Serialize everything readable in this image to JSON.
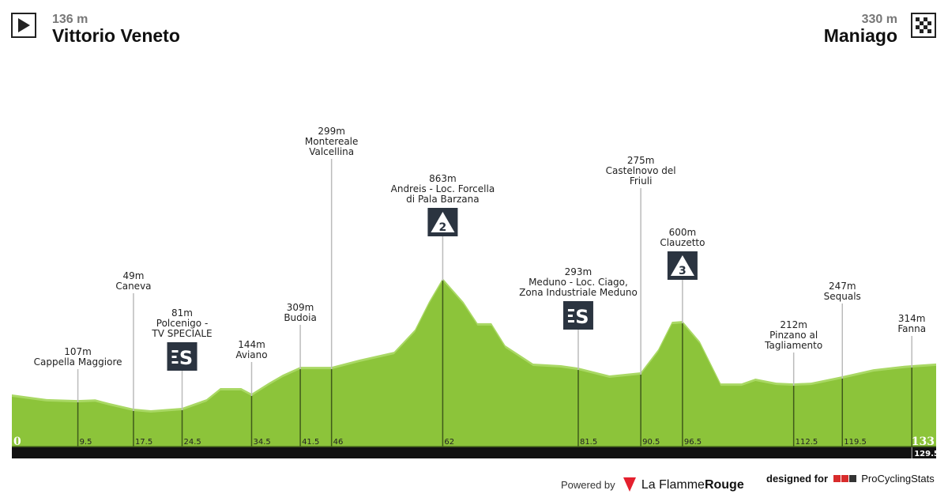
{
  "start": {
    "altitude": "136 m",
    "city": "Vittorio Veneto",
    "icon": "play-icon"
  },
  "finish": {
    "altitude": "330 m",
    "city": "Maniago",
    "icon": "checkered-flag-icon"
  },
  "colors": {
    "profile": "#8cc43a",
    "profile_light": "#a9d864",
    "axis_bar": "#111111",
    "marker_line": "#3f5a1a",
    "badge": "#2b3440"
  },
  "chart_data": {
    "type": "area",
    "xlabel": "",
    "ylabel": "",
    "xlim": [
      0,
      133
    ],
    "profile": [
      [
        0,
        136
      ],
      [
        5,
        107
      ],
      [
        9.5,
        101
      ],
      [
        12,
        105
      ],
      [
        14,
        82
      ],
      [
        17.5,
        47
      ],
      [
        20,
        37
      ],
      [
        24.5,
        52
      ],
      [
        28,
        106
      ],
      [
        30,
        176
      ],
      [
        33,
        176
      ],
      [
        34.5,
        141
      ],
      [
        37,
        210
      ],
      [
        39,
        260
      ],
      [
        41.5,
        309
      ],
      [
        46,
        309
      ],
      [
        50,
        354
      ],
      [
        55,
        403
      ],
      [
        58,
        542
      ],
      [
        60,
        715
      ],
      [
        62,
        863
      ],
      [
        65,
        715
      ],
      [
        67,
        582
      ],
      [
        69,
        582
      ],
      [
        71,
        443
      ],
      [
        75,
        329
      ],
      [
        79,
        319
      ],
      [
        81.5,
        304
      ],
      [
        86,
        255
      ],
      [
        90.5,
        275
      ],
      [
        93,
        418
      ],
      [
        95,
        591
      ],
      [
        96.5,
        596
      ],
      [
        99,
        468
      ],
      [
        102,
        205
      ],
      [
        105,
        205
      ],
      [
        107,
        235
      ],
      [
        110,
        210
      ],
      [
        112.5,
        205
      ],
      [
        115,
        210
      ],
      [
        119.5,
        250
      ],
      [
        124,
        294
      ],
      [
        128,
        314
      ],
      [
        129.5,
        319
      ],
      [
        133,
        330
      ]
    ],
    "start_km": "0",
    "finish_km": "133",
    "remaining_km": "129.5",
    "markers": [
      {
        "km": "9.5",
        "elev": "107m",
        "name": [
          "Cappella Maggiore"
        ],
        "badge": ""
      },
      {
        "km": "17.5",
        "elev": "49m",
        "name": [
          "Caneva"
        ],
        "badge": ""
      },
      {
        "km": "24.5",
        "elev": "81m",
        "name": [
          "Polcenigo -",
          "TV SPECIALE"
        ],
        "badge": "S"
      },
      {
        "km": "34.5",
        "elev": "144m",
        "name": [
          "Aviano"
        ],
        "badge": ""
      },
      {
        "km": "41.5",
        "elev": "309m",
        "name": [
          "Budoia"
        ],
        "badge": ""
      },
      {
        "km": "46",
        "elev": "299m",
        "name": [
          "Montereale",
          "Valcellina"
        ],
        "badge": ""
      },
      {
        "km": "62",
        "elev": "863m",
        "name": [
          "Andreis - Loc. Forcella",
          "di Pala Barzana"
        ],
        "badge": "2"
      },
      {
        "km": "81.5",
        "elev": "293m",
        "name": [
          "Meduno - Loc. Ciago,",
          "Zona Industriale Meduno"
        ],
        "badge": "S"
      },
      {
        "km": "90.5",
        "elev": "275m",
        "name": [
          "Castelnovo del",
          "Friuli"
        ],
        "badge": ""
      },
      {
        "km": "96.5",
        "elev": "600m",
        "name": [
          "Clauzetto"
        ],
        "badge": "3"
      },
      {
        "km": "112.5",
        "elev": "212m",
        "name": [
          "Pinzano al",
          "Tagliamento"
        ],
        "badge": ""
      },
      {
        "km": "119.5",
        "elev": "247m",
        "name": [
          "Sequals"
        ],
        "badge": ""
      },
      {
        "km": "129.5",
        "elev": "314m",
        "name": [
          "Fanna"
        ],
        "badge": ""
      }
    ]
  },
  "footer": {
    "powered_by": "Powered by",
    "lfr": "La Flamme",
    "lfr_bold": "Rouge",
    "designed_for": "designed for",
    "pcs": "ProCyclingStats"
  }
}
